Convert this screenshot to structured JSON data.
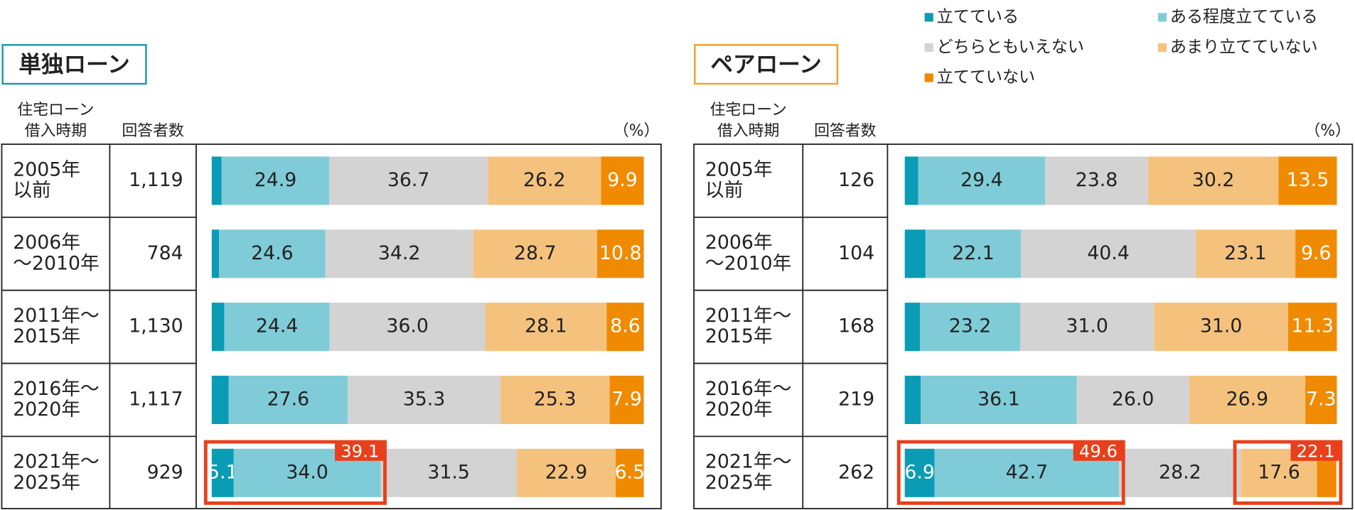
{
  "legend": {
    "items": [
      {
        "name": "立てている",
        "color": "#0a9bb5"
      },
      {
        "name": "ある程度立てている",
        "color": "#7fccd8"
      },
      {
        "name": "どちらともいえない",
        "color": "#d3d3d3"
      },
      {
        "name": "あまり立てていない",
        "color": "#f5c27e"
      },
      {
        "name": "立てていない",
        "color": "#f08a00"
      }
    ]
  },
  "chart_data": [
    {
      "type": "bar",
      "orientation": "horizontal",
      "stacked": true,
      "title": "単独ローン",
      "title_color": "#1a9aaa",
      "row_header": [
        "住宅ローン",
        "借入時期"
      ],
      "count_header": "回答者数",
      "unit": "（%）",
      "xlim": [
        0,
        100
      ],
      "categories": [
        [
          "2005年",
          "以前"
        ],
        [
          "2006年",
          "～2010年"
        ],
        [
          "2011年～",
          "2015年"
        ],
        [
          "2016年～",
          "2020年"
        ],
        [
          "2021年～",
          "2025年"
        ]
      ],
      "respondents": [
        {
          "value": 1119,
          "label": "1,119"
        },
        {
          "value": 784,
          "label": "784"
        },
        {
          "value": 1130,
          "label": "1,130"
        },
        {
          "value": 1117,
          "label": "1,117"
        },
        {
          "value": 929,
          "label": "929"
        }
      ],
      "series": [
        {
          "values": [
            2.3,
            1.7,
            2.9,
            3.9,
            5.1
          ],
          "value_labels": [
            null,
            null,
            null,
            null,
            "5.1"
          ]
        },
        {
          "values": [
            24.9,
            24.6,
            24.4,
            27.6,
            34.0
          ],
          "value_labels": [
            "24.9",
            "24.6",
            "24.4",
            "27.6",
            "34.0"
          ]
        },
        {
          "values": [
            36.7,
            34.2,
            36.0,
            35.3,
            31.5
          ],
          "value_labels": [
            "36.7",
            "34.2",
            "36.0",
            "35.3",
            "31.5"
          ]
        },
        {
          "values": [
            26.2,
            28.7,
            28.1,
            25.3,
            22.9
          ],
          "value_labels": [
            "26.2",
            "28.7",
            "28.1",
            "25.3",
            "22.9"
          ]
        },
        {
          "values": [
            9.9,
            10.8,
            8.6,
            7.9,
            6.5
          ],
          "value_labels": [
            "9.9",
            "10.8",
            "8.6",
            "7.9",
            "6.5"
          ]
        }
      ],
      "highlights": [
        {
          "category": 4,
          "from": 0,
          "to": 1,
          "value": 39.1
        }
      ]
    },
    {
      "type": "bar",
      "orientation": "horizontal",
      "stacked": true,
      "title": "ペアローン",
      "title_color": "#f0a030",
      "row_header": [
        "住宅ローン",
        "借入時期"
      ],
      "count_header": "回答者数",
      "unit": "（%）",
      "xlim": [
        0,
        100
      ],
      "categories": [
        [
          "2005年",
          "以前"
        ],
        [
          "2006年",
          "～2010年"
        ],
        [
          "2011年～",
          "2015年"
        ],
        [
          "2016年～",
          "2020年"
        ],
        [
          "2021年～",
          "2025年"
        ]
      ],
      "respondents": [
        {
          "value": 126,
          "label": "126"
        },
        {
          "value": 104,
          "label": "104"
        },
        {
          "value": 168,
          "label": "168"
        },
        {
          "value": 219,
          "label": "219"
        },
        {
          "value": 262,
          "label": "262"
        }
      ],
      "series": [
        {
          "values": [
            3.1,
            4.8,
            3.5,
            3.7,
            6.9
          ],
          "value_labels": [
            null,
            null,
            null,
            null,
            "6.9"
          ]
        },
        {
          "values": [
            29.4,
            22.1,
            23.2,
            36.1,
            42.7
          ],
          "value_labels": [
            "29.4",
            "22.1",
            "23.2",
            "36.1",
            "42.7"
          ]
        },
        {
          "values": [
            23.8,
            40.4,
            31.0,
            26.0,
            28.2
          ],
          "value_labels": [
            "23.8",
            "40.4",
            "31.0",
            "26.0",
            "28.2"
          ]
        },
        {
          "values": [
            30.2,
            23.1,
            31.0,
            26.9,
            17.6
          ],
          "value_labels": [
            "30.2",
            "23.1",
            "31.0",
            "26.9",
            "17.6"
          ]
        },
        {
          "values": [
            13.5,
            9.6,
            11.3,
            7.3,
            4.5
          ],
          "value_labels": [
            "13.5",
            "9.6",
            "11.3",
            "7.3",
            null
          ]
        }
      ],
      "highlights": [
        {
          "category": 4,
          "from": 0,
          "to": 1,
          "value": 49.6
        },
        {
          "category": 4,
          "from": 3,
          "to": 4,
          "value": 22.1
        }
      ]
    }
  ]
}
